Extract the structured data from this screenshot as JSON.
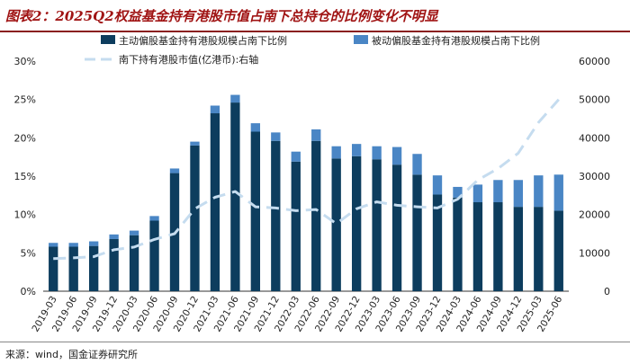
{
  "header": {
    "title": "图表2：2025Q2权益基金持有港股市值占南下总持仓的比例变化不明显"
  },
  "footer": {
    "source": "来源：wind，国金证券研究所"
  },
  "chart_data": {
    "type": "bar",
    "stacked": true,
    "categories": [
      "2019-03",
      "2019-06",
      "2019-09",
      "2019-12",
      "2020-03",
      "2020-06",
      "2020-09",
      "2020-12",
      "2021-03",
      "2021-06",
      "2021-09",
      "2021-12",
      "2022-03",
      "2022-06",
      "2022-09",
      "2022-12",
      "2023-03",
      "2023-06",
      "2023-09",
      "2023-12",
      "2024-03",
      "2024-06",
      "2024-09",
      "2024-12",
      "2025-03",
      "2025-06"
    ],
    "series": [
      {
        "name": "主动偏股基金持有港股规模占南下比例",
        "kind": "bar",
        "axis": "left",
        "color": "#0d3d5e",
        "values": [
          5.8,
          5.8,
          5.9,
          6.8,
          7.3,
          9.2,
          15.4,
          19.0,
          23.2,
          24.6,
          20.8,
          19.6,
          16.9,
          19.6,
          17.3,
          17.6,
          17.2,
          16.5,
          15.2,
          12.6,
          12.2,
          11.6,
          11.6,
          11.0,
          11.0,
          10.5
        ]
      },
      {
        "name": "被动偏股基金持有港股规模占南下比例",
        "kind": "bar",
        "axis": "left",
        "color": "#4a86c5",
        "values": [
          0.5,
          0.5,
          0.6,
          0.6,
          0.6,
          0.6,
          0.6,
          0.5,
          1.0,
          1.0,
          1.1,
          1.1,
          1.3,
          1.5,
          1.6,
          1.6,
          1.7,
          2.3,
          2.7,
          2.5,
          1.4,
          2.3,
          2.9,
          3.5,
          4.1,
          4.7
        ]
      },
      {
        "name": "南下持有港股市值(亿港币):右轴",
        "kind": "line",
        "axis": "right",
        "color": "#c5dcef",
        "dashed": true,
        "values": [
          8500,
          8700,
          9000,
          10800,
          11500,
          13500,
          15000,
          21500,
          24500,
          26000,
          22000,
          21700,
          21000,
          21300,
          17600,
          21500,
          23300,
          22400,
          22000,
          21700,
          24000,
          29000,
          32000,
          36000,
          44000,
          50000
        ]
      }
    ],
    "ylim": [
      0,
      30
    ],
    "yticks": [
      "0%",
      "5%",
      "10%",
      "15%",
      "20%",
      "25%",
      "30%"
    ],
    "y2lim": [
      0,
      60000
    ],
    "y2ticks": [
      "0",
      "10000",
      "20000",
      "30000",
      "40000",
      "50000",
      "60000"
    ],
    "legend": "top",
    "grid": false
  }
}
